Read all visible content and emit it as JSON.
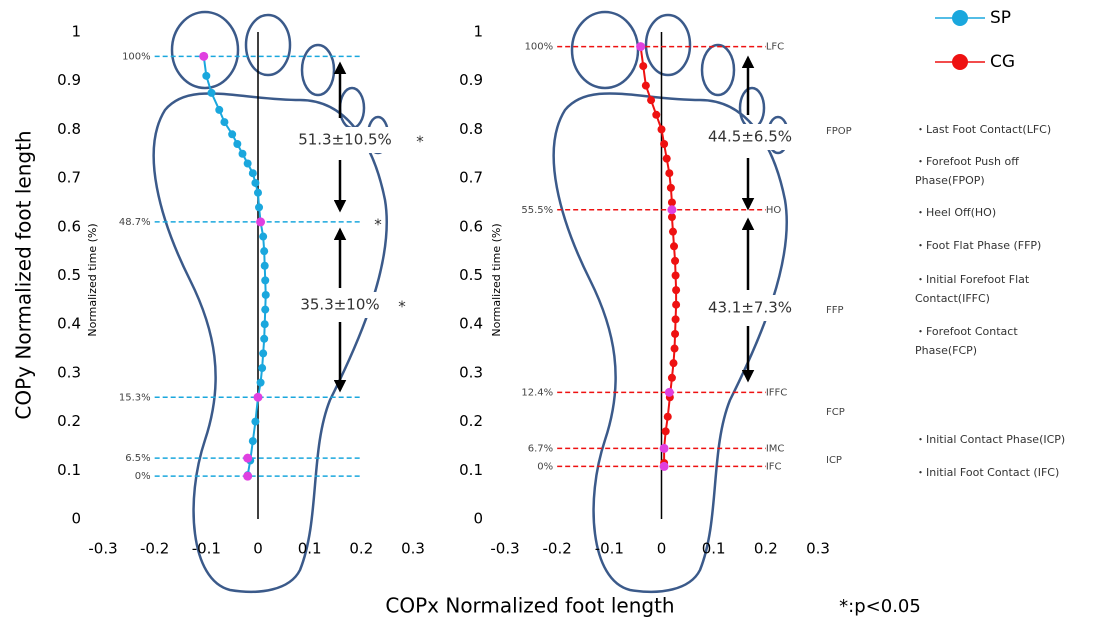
{
  "chart_data": [
    {
      "type": "scatter",
      "xlim": [
        -0.3,
        0.3
      ],
      "ylim": [
        0,
        1
      ],
      "xticks": [
        -0.3,
        -0.2,
        -0.1,
        0,
        0.1,
        0.2,
        0.3
      ],
      "yticks": [
        0,
        0.1,
        0.2,
        0.3,
        0.4,
        0.5,
        0.6,
        0.7,
        0.8,
        0.9,
        1
      ],
      "series": [
        {
          "name": "SP",
          "color": "#1aa7dd",
          "x": [
            -0.105,
            -0.1,
            -0.09,
            -0.075,
            -0.065,
            -0.05,
            -0.04,
            -0.03,
            -0.02,
            -0.01,
            -0.005,
            0,
            0.002,
            0.005,
            0.01,
            0.012,
            0.013,
            0.014,
            0.015,
            0.014,
            0.013,
            0.012,
            0.01,
            0.008,
            0.005,
            0,
            -0.005,
            -0.01,
            -0.015,
            -0.02
          ],
          "values": [
            0.95,
            0.91,
            0.875,
            0.84,
            0.815,
            0.79,
            0.77,
            0.75,
            0.73,
            0.71,
            0.69,
            0.67,
            0.64,
            0.61,
            0.58,
            0.55,
            0.52,
            0.49,
            0.46,
            0.43,
            0.4,
            0.37,
            0.34,
            0.31,
            0.28,
            0.25,
            0.2,
            0.16,
            0.12,
            0.09
          ]
        }
      ],
      "event_color": "#e040e0",
      "event_line_color": "#1aa7dd",
      "events": [
        {
          "label": "100%",
          "x": -0.105,
          "y": 0.95
        },
        {
          "label": "48.7%",
          "x": 0.005,
          "y": 0.61
        },
        {
          "label": "15.3%",
          "x": 0,
          "y": 0.25
        },
        {
          "label": "6.5%",
          "x": -0.02,
          "y": 0.125
        },
        {
          "label": "0%",
          "x": -0.02,
          "y": 0.088
        }
      ]
    },
    {
      "type": "scatter",
      "xlim": [
        -0.3,
        0.3
      ],
      "ylim": [
        0,
        1
      ],
      "xticks": [
        -0.3,
        -0.2,
        -0.1,
        0,
        0.1,
        0.2,
        0.3
      ],
      "yticks": [
        0,
        0.1,
        0.2,
        0.3,
        0.4,
        0.5,
        0.6,
        0.7,
        0.8,
        0.9,
        1
      ],
      "series": [
        {
          "name": "CG",
          "color": "#ee1111",
          "x": [
            -0.04,
            -0.035,
            -0.03,
            -0.02,
            -0.01,
            0,
            0.005,
            0.01,
            0.015,
            0.018,
            0.02,
            0.02,
            0.022,
            0.024,
            0.026,
            0.027,
            0.028,
            0.028,
            0.027,
            0.026,
            0.025,
            0.023,
            0.02,
            0.016,
            0.012,
            0.008,
            0.005,
            0.005
          ],
          "values": [
            0.97,
            0.93,
            0.89,
            0.86,
            0.83,
            0.8,
            0.77,
            0.74,
            0.71,
            0.68,
            0.65,
            0.62,
            0.59,
            0.56,
            0.53,
            0.5,
            0.47,
            0.44,
            0.41,
            0.38,
            0.35,
            0.32,
            0.29,
            0.25,
            0.21,
            0.18,
            0.145,
            0.115
          ]
        }
      ],
      "event_color": "#e040e0",
      "event_line_color": "#ee1111",
      "events": [
        {
          "label": "100%",
          "name": "LFC",
          "x": -0.04,
          "y": 0.97
        },
        {
          "label": "55.5%",
          "name": "HO",
          "x": 0.02,
          "y": 0.635
        },
        {
          "label": "12.4%",
          "name": "IFFC",
          "x": 0.015,
          "y": 0.26
        },
        {
          "label": "6.7%",
          "name": "IMC",
          "x": 0.005,
          "y": 0.145
        },
        {
          "label": "0%",
          "name": "IFC",
          "x": 0.005,
          "y": 0.108
        }
      ]
    }
  ],
  "y_label": "COPy Normalized foot length",
  "inner_y_label": "Normalized time (%)",
  "x_label": "COPx Normalized foot length",
  "footnote": "*:p<0.05",
  "annotations": [
    "51.3±10.5%",
    "*",
    "35.3±10%",
    "44.5±6.5%",
    "43.1±7.3%"
  ],
  "phases": [
    "FPOP",
    "FFP",
    "FCP",
    "ICP"
  ],
  "definitions": [
    [
      "・Last Foot Contact(LFC)"
    ],
    [
      "・Forefoot Push off",
      "Phase(FPOP)"
    ],
    [
      "・Heel Off(HO)"
    ],
    [
      "・Foot Flat Phase (FFP)"
    ],
    [
      "・Initial Forefoot Flat",
      "Contact(IFFC)"
    ],
    [
      "・Forefoot Contact",
      "Phase(FCP)"
    ],
    [
      "・Initial Contact Phase(ICP)"
    ],
    [
      "・Initial Foot Contact (IFC)"
    ]
  ]
}
